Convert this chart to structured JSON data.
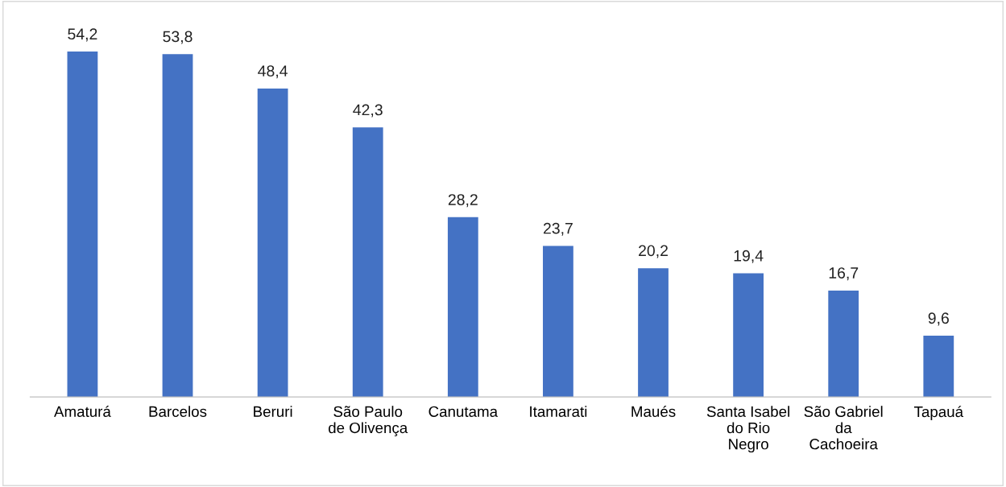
{
  "chart_data": {
    "type": "bar",
    "categories": [
      "Amaturá",
      "Barcelos",
      "Beruri",
      "São Paulo\nde Olivença",
      "Canutama",
      "Itamarati",
      "Maués",
      "Santa Isabel\ndo Rio\nNegro",
      "São Gabriel\nda\nCachoeira",
      "Tapauá"
    ],
    "values": [
      54.2,
      53.8,
      48.4,
      42.3,
      28.2,
      23.7,
      20.2,
      19.4,
      16.7,
      9.6
    ],
    "value_labels": [
      "54,2",
      "53,8",
      "48,4",
      "42,3",
      "28,2",
      "23,7",
      "20,2",
      "19,4",
      "16,7",
      "9,6"
    ],
    "color": "#4472c4",
    "grid": false,
    "legend": false
  }
}
